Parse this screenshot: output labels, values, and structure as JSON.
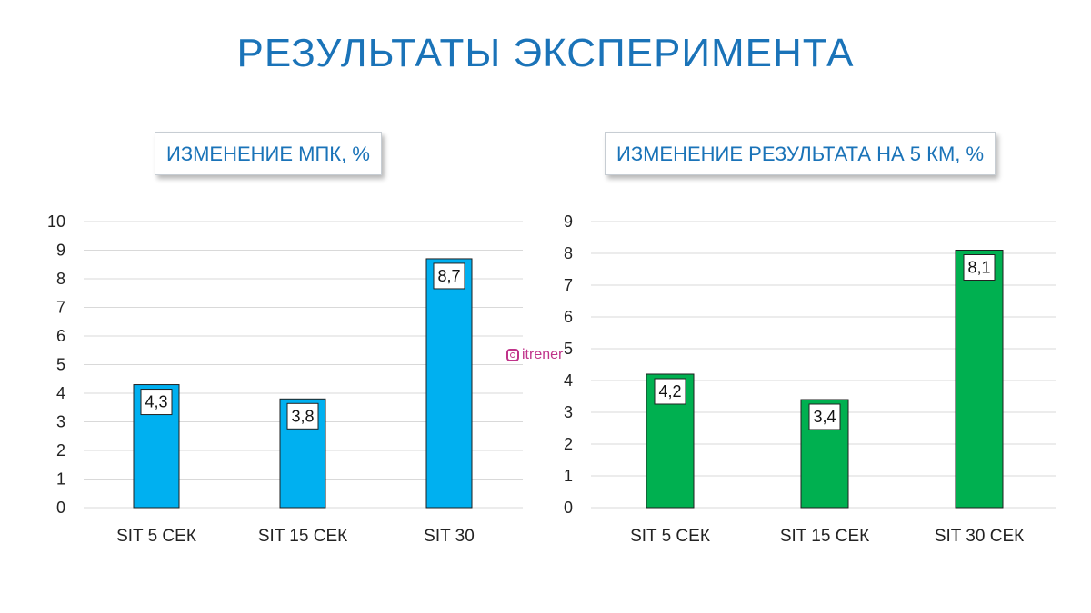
{
  "page": {
    "title": "РЕЗУЛЬТАТЫ ЭКСПЕРИМЕНТА",
    "watermark": "itrener"
  },
  "colors": {
    "title": "#1a73b8",
    "blue_bar": "#00b0f0",
    "green_bar": "#00b050",
    "watermark": "#c0338a"
  },
  "chart_data": [
    {
      "type": "bar",
      "title": "ИЗМЕНЕНИЕ МПК, %",
      "categories": [
        "SIT 5 СЕК",
        "SIT 15 СЕК",
        "SIT 30"
      ],
      "values": [
        4.3,
        3.8,
        8.7
      ],
      "data_labels": [
        "4,3",
        "3,8",
        "8,7"
      ],
      "yticks": [
        "0",
        "1",
        "2",
        "3",
        "4",
        "5",
        "6",
        "7",
        "8",
        "9",
        "10"
      ],
      "ylim": [
        0,
        10
      ],
      "grid": true,
      "bar_color": "#00b0f0"
    },
    {
      "type": "bar",
      "title": "ИЗМЕНЕНИЕ РЕЗУЛЬТАТА НА 5 КМ, %",
      "categories": [
        "SIT 5 СЕК",
        "SIT 15 СЕК",
        "SIT 30 СЕК"
      ],
      "values": [
        4.2,
        3.4,
        8.1
      ],
      "data_labels": [
        "4,2",
        "3,4",
        "8,1"
      ],
      "yticks": [
        "0",
        "1",
        "2",
        "3",
        "4",
        "5",
        "6",
        "7",
        "8",
        "9"
      ],
      "ylim": [
        0,
        9
      ],
      "grid": true,
      "bar_color": "#00b050"
    }
  ]
}
